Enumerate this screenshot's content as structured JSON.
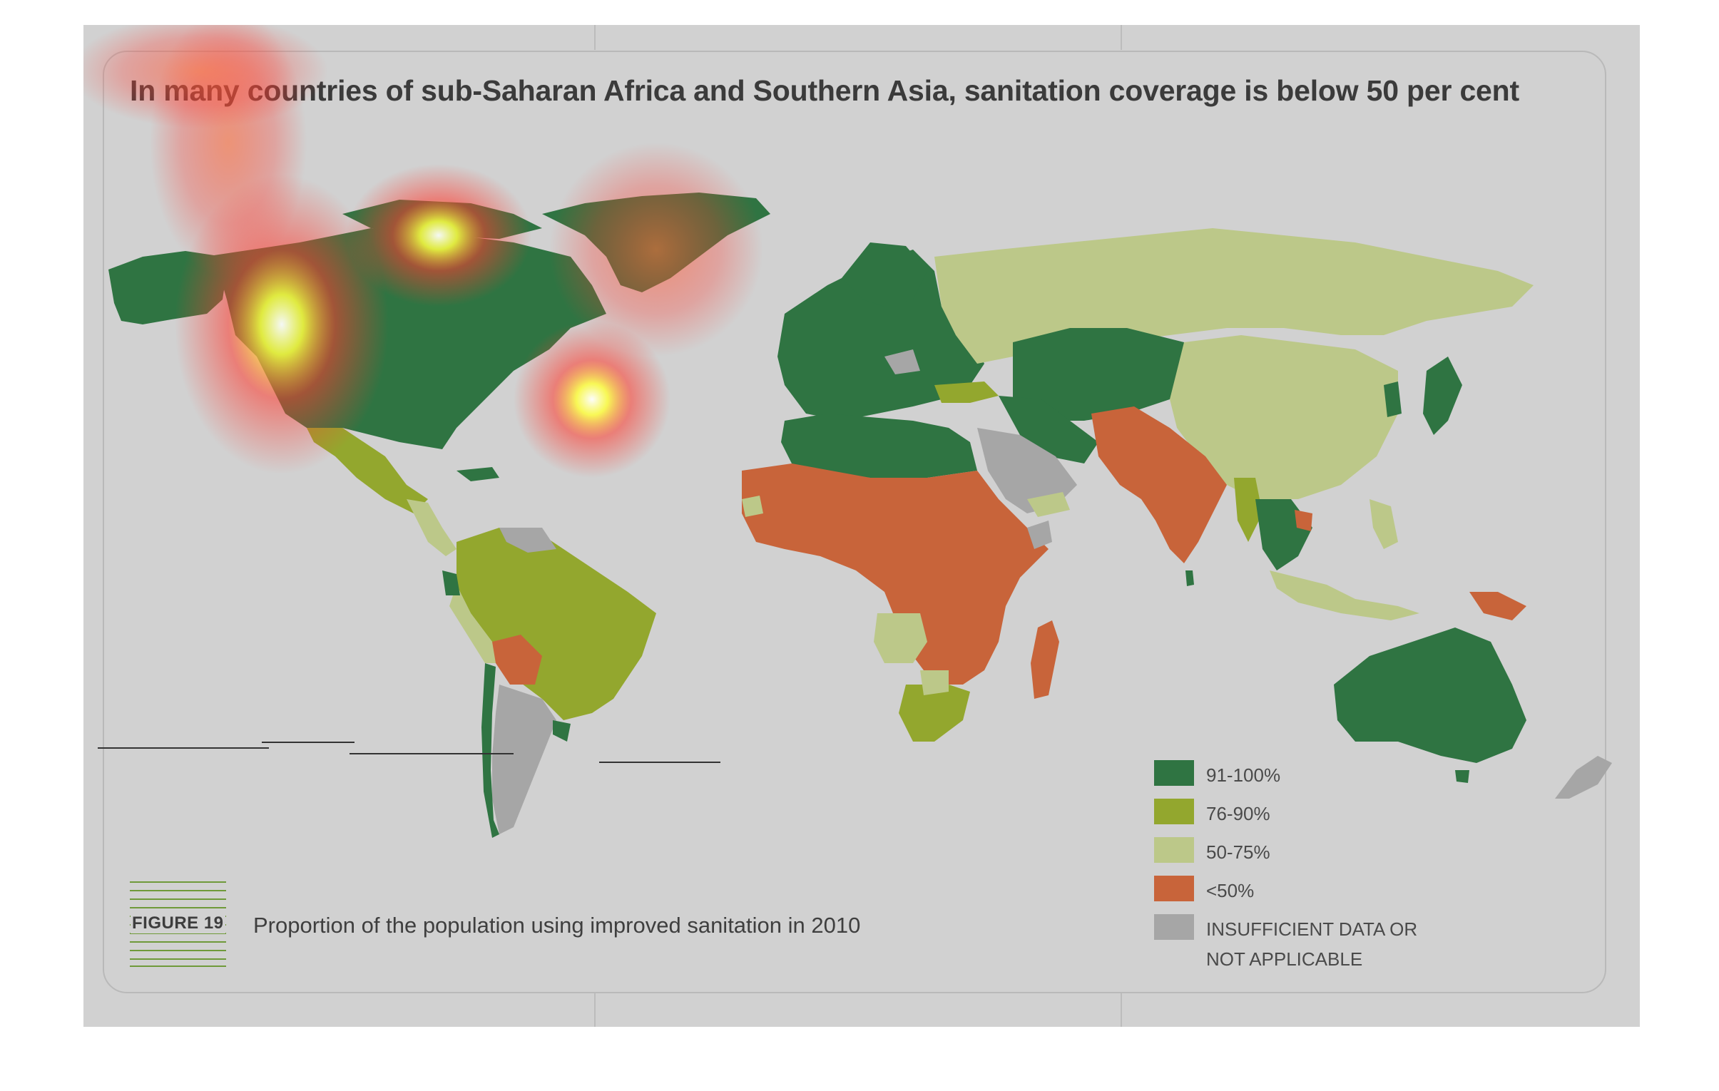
{
  "title": "In many countries of sub-Saharan Africa and Southern Asia, sanitation coverage is below 50 per cent",
  "figure_label": "FIGURE 19",
  "caption": "Proportion of the population using improved sanitation in 2010",
  "legend": {
    "items": [
      {
        "label": "91-100%",
        "color": "#2f7442"
      },
      {
        "label": "76-90%",
        "color": "#93a72e"
      },
      {
        "label": "50-75%",
        "color": "#bcc889"
      },
      {
        "label": "<50%",
        "color": "#c8643a"
      },
      {
        "label": "INSUFFICIENT DATA OR",
        "label2": "NOT APPLICABLE",
        "color": "#a6a6a6"
      }
    ]
  },
  "colors": {
    "panel_background": "#d1d1d1",
    "ocean": "#d1d1d1",
    "category_91_100": "#2f7442",
    "category_76_90": "#93a72e",
    "category_50_75": "#bcc889",
    "category_below_50": "#c8643a",
    "category_no_data": "#a6a6a6",
    "heatmap_overlay": "red-yellow gaze heatmap"
  },
  "regions": [
    {
      "name": "North America",
      "category": "91-100%"
    },
    {
      "name": "Greenland",
      "category": "91-100%"
    },
    {
      "name": "Mexico and Central America",
      "category": "76-90%"
    },
    {
      "name": "South America (Brazil, Colombia, Venezuela)",
      "category": "76-90%"
    },
    {
      "name": "Bolivia",
      "category": "<50%"
    },
    {
      "name": "Argentina",
      "category": "INSUFFICIENT DATA OR NOT APPLICABLE"
    },
    {
      "name": "Europe",
      "category": "91-100%"
    },
    {
      "name": "Russia and China",
      "category": "50-75%"
    },
    {
      "name": "Central Asia",
      "category": "91-100%"
    },
    {
      "name": "North Africa",
      "category": "91-100%"
    },
    {
      "name": "Sub-Saharan Africa",
      "category": "<50%"
    },
    {
      "name": "Southern Asia (India)",
      "category": "<50%"
    },
    {
      "name": "Arabian Peninsula",
      "category": "INSUFFICIENT DATA OR NOT APPLICABLE"
    },
    {
      "name": "Australia",
      "category": "91-100%"
    },
    {
      "name": "Papua New Guinea",
      "category": "<50%"
    },
    {
      "name": "Southern Africa",
      "category": "76-90%"
    },
    {
      "name": "Japan and Korea",
      "category": "91-100%"
    }
  ]
}
